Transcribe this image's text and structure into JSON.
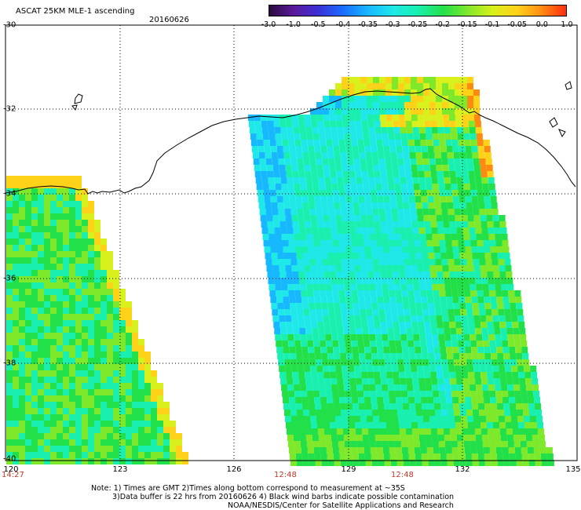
{
  "header": {
    "product": "ASCAT 25KM MLE-1 ascending",
    "date": "20160626"
  },
  "colorbar": {
    "labels": [
      "-3.0",
      "-1.0",
      "-0.5",
      "-0.4",
      "-0.35",
      "-0.3",
      "-0.25",
      "-0.2",
      "-0.15",
      "-0.1",
      "-0.05",
      "0.0",
      "1.0"
    ],
    "colors": [
      "#2a0a3c",
      "#5a1a9a",
      "#3b2fd6",
      "#1a6cff",
      "#16b8ff",
      "#1ee8e8",
      "#19f0b0",
      "#22e04a",
      "#7ee82a",
      "#d8f01c",
      "#ffd21a",
      "#ff8a10",
      "#ff2a10"
    ]
  },
  "axes": {
    "y_ticks": [
      "-30",
      "-32",
      "-34",
      "-36",
      "-38",
      "-40"
    ],
    "x_ticks": [
      "120",
      "123",
      "126",
      "129",
      "132",
      "135"
    ]
  },
  "pass_times": [
    "14:27",
    "12:48",
    "12:48"
  ],
  "notes": {
    "line1": "Note: 1) Times are GMT 2)Times along bottom correspond to measurement at ~35S",
    "line2": "3)Data buffer is 22 hrs from 20160626 4) Black wind barbs indicate possible contamination",
    "line3": "NOAA/NESDIS/Center for Satellite Applications and Research"
  }
}
